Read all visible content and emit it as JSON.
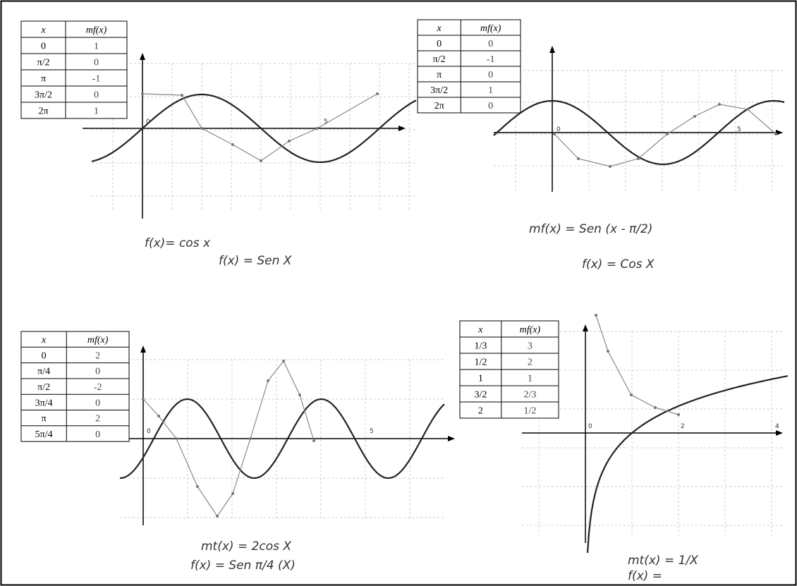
{
  "panels": [
    {
      "table": {
        "header": [
          "x",
          "mf(x)"
        ],
        "rows": [
          [
            "0",
            "1"
          ],
          [
            "π/2",
            "0"
          ],
          [
            "π",
            "-1"
          ],
          [
            "3π/2",
            "0"
          ],
          [
            "2π",
            "1"
          ]
        ]
      },
      "axis_labels": [
        "0",
        "5"
      ],
      "notes": [
        "f(x)= cos x",
        "f(x) = Sen X"
      ]
    },
    {
      "table": {
        "header": [
          "x",
          "mf(x)"
        ],
        "rows": [
          [
            "0",
            "0"
          ],
          [
            "π/2",
            "-1"
          ],
          [
            "π",
            "0"
          ],
          [
            "3π/2",
            "1"
          ],
          [
            "2π",
            "0"
          ]
        ]
      },
      "axis_labels": [
        "0",
        "5"
      ],
      "notes": [
        "mf(x) = Sen (x - π/2)",
        "f(x) = Cos X"
      ]
    },
    {
      "table": {
        "header": [
          "x",
          "mf(x)"
        ],
        "rows": [
          [
            "0",
            "2"
          ],
          [
            "π/4",
            "0"
          ],
          [
            "π/2",
            "-2"
          ],
          [
            "3π/4",
            "0"
          ],
          [
            "π",
            "2"
          ],
          [
            "5π/4",
            "0"
          ]
        ]
      },
      "axis_labels": [
        "0",
        "5"
      ],
      "notes": [
        "mt(x) = 2cos X",
        "f(x) = Sen π/4 (X)"
      ]
    },
    {
      "table": {
        "header": [
          "x",
          "mf(x)"
        ],
        "rows": [
          [
            "1/3",
            "3"
          ],
          [
            "1/2",
            "2"
          ],
          [
            "1",
            "1"
          ],
          [
            "3/2",
            "2/3"
          ],
          [
            "2",
            "1/2"
          ]
        ]
      },
      "axis_labels": [
        "0",
        "2",
        "4"
      ],
      "notes": [
        "mt(x) = 1/X",
        "f(x) ="
      ]
    }
  ]
}
